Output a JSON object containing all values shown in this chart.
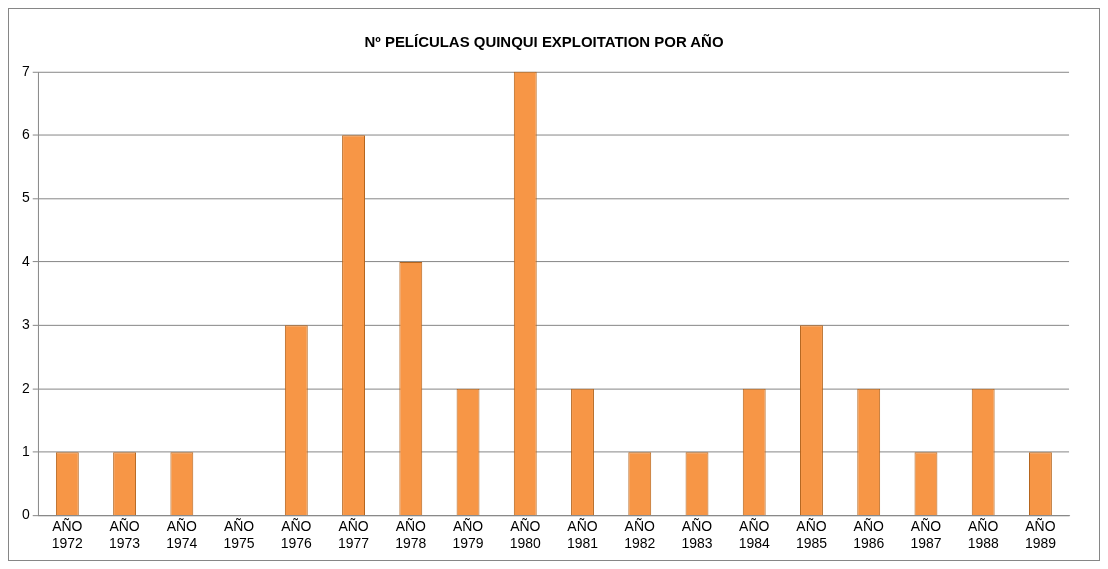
{
  "chart_data": {
    "type": "bar",
    "title": "Nº PELÍCULAS QUINQUI EXPLOITATION POR AÑO",
    "categories": [
      "AÑO 1972",
      "AÑO 1973",
      "AÑO 1974",
      "AÑO 1975",
      "AÑO 1976",
      "AÑO 1977",
      "AÑO 1978",
      "AÑO 1979",
      "AÑO 1980",
      "AÑO 1981",
      "AÑO 1982",
      "AÑO 1983",
      "AÑO 1984",
      "AÑO 1985",
      "AÑO 1986",
      "AÑO 1987",
      "AÑO 1988",
      "AÑO 1989"
    ],
    "values": [
      1,
      1,
      1,
      0,
      3,
      6,
      4,
      2,
      7,
      2,
      1,
      1,
      2,
      3,
      2,
      1,
      2,
      1
    ],
    "color": "#f79646",
    "ylim": [
      0,
      7
    ],
    "yticks": [
      0,
      1,
      2,
      3,
      4,
      5,
      6,
      7
    ],
    "grid": "y",
    "legend": false
  }
}
